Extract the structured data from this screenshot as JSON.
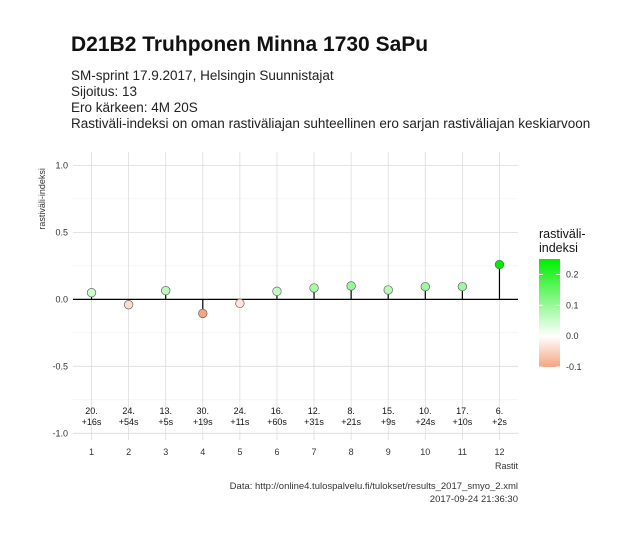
{
  "header": {
    "title": "D21B2 Truhponen Minna 1730 SaPu",
    "line1": "SM-sprint 17.9.2017, Helsingin Suunnistajat",
    "line2": "Sijoitus: 13",
    "line3": "Ero kärkeen: 4M 20S",
    "line4": "Rastiväli-indeksi on oman rastiväliajan suhteellinen ero sarjan rastiväliajan keskiarvoon"
  },
  "caption": {
    "source": "Data: http://online4.tulospalvelu.fi/tulokset/results_2017_smyo_2.xml",
    "timestamp": "2017-09-24 21:36:30"
  },
  "chart_data": {
    "type": "scatter",
    "title": "D21B2 Truhponen Minna 1730 SaPu",
    "xlabel": "Rastit",
    "ylabel": "rastiväli-indeksi",
    "x": [
      1,
      2,
      3,
      4,
      5,
      6,
      7,
      8,
      9,
      10,
      11,
      12
    ],
    "xticks": [
      "1",
      "2",
      "3",
      "4",
      "5",
      "6",
      "7",
      "8",
      "9",
      "10",
      "11",
      "12"
    ],
    "values": [
      0.05,
      -0.04,
      0.065,
      -0.105,
      -0.03,
      0.06,
      0.085,
      0.1,
      0.07,
      0.095,
      0.095,
      0.26
    ],
    "labels_top": [
      "20.",
      "24.",
      "13.",
      "30.",
      "24.",
      "16.",
      "12.",
      "8.",
      "15.",
      "10.",
      "17.",
      "6."
    ],
    "labels_bottom": [
      "+16s",
      "+54s",
      "+5s",
      "+19s",
      "+11s",
      "+60s",
      "+31s",
      "+21s",
      "+9s",
      "+24s",
      "+10s",
      "+2s"
    ],
    "ylim": [
      -1.05,
      1.1
    ],
    "yticks": [
      -1.0,
      -0.5,
      0.0,
      0.5,
      1.0
    ],
    "ytick_labels": [
      "-1.0",
      "-0.5",
      "0.0",
      "0.5",
      "1.0"
    ],
    "grid": true,
    "legend": {
      "title": "rastiväli-\nindeksi",
      "placement": "right",
      "range": [
        -0.1,
        0.25
      ],
      "ticks": [
        -0.1,
        0.0,
        0.1,
        0.2
      ],
      "tick_labels": [
        "-0.1",
        "0.0",
        "0.1",
        "0.2"
      ],
      "colors": {
        "low": "#f4a582",
        "mid": "#ffffff",
        "high": "#00ee00"
      }
    }
  }
}
